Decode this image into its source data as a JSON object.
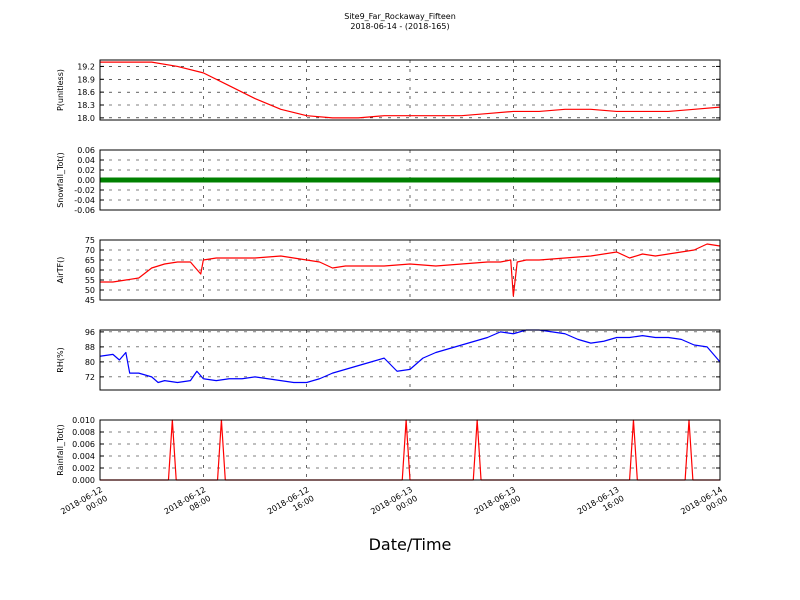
{
  "title_line1": "Site9_Far_Rockaway_Fifteen",
  "title_line2": "2018-06-14 - (2018-165)",
  "xlabel": "Date/Time",
  "x_ticks": [
    [
      "2018-06-12",
      "00:00"
    ],
    [
      "2018-06-12",
      "08:00"
    ],
    [
      "2018-06-12",
      "16:00"
    ],
    [
      "2018-06-13",
      "00:00"
    ],
    [
      "2018-06-13",
      "08:00"
    ],
    [
      "2018-06-13",
      "16:00"
    ],
    [
      "2018-06-14",
      "00:00"
    ]
  ],
  "chart_data": [
    {
      "type": "line",
      "ylabel": "P(unitless)",
      "ylim": [
        17.95,
        19.35
      ],
      "yticks": [
        "18.0",
        "18.3",
        "18.6",
        "18.9",
        "19.2"
      ],
      "color": "#ff0000",
      "grid": true,
      "x_hours": [
        0,
        4,
        6,
        8,
        10,
        12,
        14,
        16,
        18,
        20,
        22,
        24,
        26,
        28,
        30,
        32,
        34,
        36,
        38,
        40,
        42,
        44,
        46,
        48
      ],
      "values": [
        19.3,
        19.3,
        19.2,
        19.05,
        18.75,
        18.45,
        18.2,
        18.05,
        18.0,
        18.0,
        18.05,
        18.05,
        18.05,
        18.05,
        18.1,
        18.15,
        18.15,
        18.2,
        18.2,
        18.15,
        18.15,
        18.15,
        18.2,
        18.25
      ]
    },
    {
      "type": "line",
      "ylabel": "Snowfall_Tot()",
      "ylim": [
        -0.06,
        0.06
      ],
      "yticks": [
        "-0.06",
        "-0.04",
        "-0.02",
        "0.00",
        "0.02",
        "0.04",
        "0.06"
      ],
      "color": "#008000",
      "grid": true,
      "x_hours": [
        0,
        48
      ],
      "values": [
        0,
        0
      ]
    },
    {
      "type": "line",
      "ylabel": "AirTF()",
      "ylim": [
        45,
        75
      ],
      "yticks": [
        "45",
        "50",
        "55",
        "60",
        "65",
        "70",
        "75"
      ],
      "color": "#ff0000",
      "grid": true,
      "x_hours": [
        0,
        1,
        2,
        3,
        4,
        5,
        6,
        7,
        7.8,
        8,
        9,
        10,
        11,
        12,
        14,
        15,
        16,
        17,
        18,
        19,
        20,
        22,
        24,
        26,
        28,
        30,
        31,
        31.8,
        32,
        32.3,
        33,
        34,
        36,
        38,
        40,
        41,
        42,
        43,
        44,
        46,
        47,
        48
      ],
      "values": [
        54,
        54,
        55,
        56,
        61,
        63,
        64,
        64,
        58,
        65,
        66,
        66,
        66,
        66,
        67,
        66,
        65,
        64,
        61,
        62,
        62,
        62,
        63,
        62,
        63,
        64,
        64,
        65,
        47,
        64,
        65,
        65,
        66,
        67,
        69,
        66,
        68,
        67,
        68,
        70,
        73,
        72
      ]
    },
    {
      "type": "line",
      "ylabel": "RH(%)",
      "ylim": [
        65,
        97
      ],
      "yticks": [
        "72",
        "80",
        "88",
        "96"
      ],
      "color": "#0000ff",
      "grid": true,
      "x_hours": [
        0,
        1,
        1.5,
        2,
        2.3,
        3,
        4,
        4.5,
        5,
        6,
        7,
        7.5,
        8,
        9,
        10,
        11,
        12,
        13,
        14,
        15,
        16,
        17,
        18,
        19,
        20,
        21,
        22,
        23,
        24,
        25,
        26,
        27,
        28,
        29,
        30,
        31,
        32,
        33,
        34,
        35,
        36,
        37,
        38,
        39,
        40,
        41,
        42,
        43,
        44,
        45,
        46,
        47,
        48
      ],
      "values": [
        83,
        84,
        81,
        85,
        74,
        74,
        72,
        69,
        70,
        69,
        70,
        75,
        71,
        70,
        71,
        71,
        72,
        71,
        70,
        69,
        69,
        71,
        74,
        76,
        78,
        80,
        82,
        75,
        76,
        82,
        85,
        87,
        89,
        91,
        93,
        96,
        95,
        97,
        97,
        96,
        95,
        92,
        90,
        91,
        93,
        93,
        94,
        93,
        93,
        92,
        89,
        88,
        80
      ]
    },
    {
      "type": "line",
      "ylabel": "Rainfall_Tot()",
      "ylim": [
        0,
        0.01
      ],
      "yticks": [
        "0.000",
        "0.002",
        "0.004",
        "0.006",
        "0.008",
        "0.010"
      ],
      "color": "#ff0000",
      "grid": true,
      "x_hours": [
        0,
        5.3,
        5.6,
        5.9,
        9.1,
        9.4,
        9.7,
        23.4,
        23.7,
        24.0,
        28.9,
        29.2,
        29.5,
        41.0,
        41.3,
        41.6,
        45.3,
        45.6,
        45.9,
        48
      ],
      "values": [
        0,
        0,
        0.01,
        0,
        0,
        0.01,
        0,
        0,
        0.01,
        0,
        0,
        0.01,
        0,
        0,
        0.01,
        0,
        0,
        0.01,
        0,
        0
      ]
    }
  ]
}
